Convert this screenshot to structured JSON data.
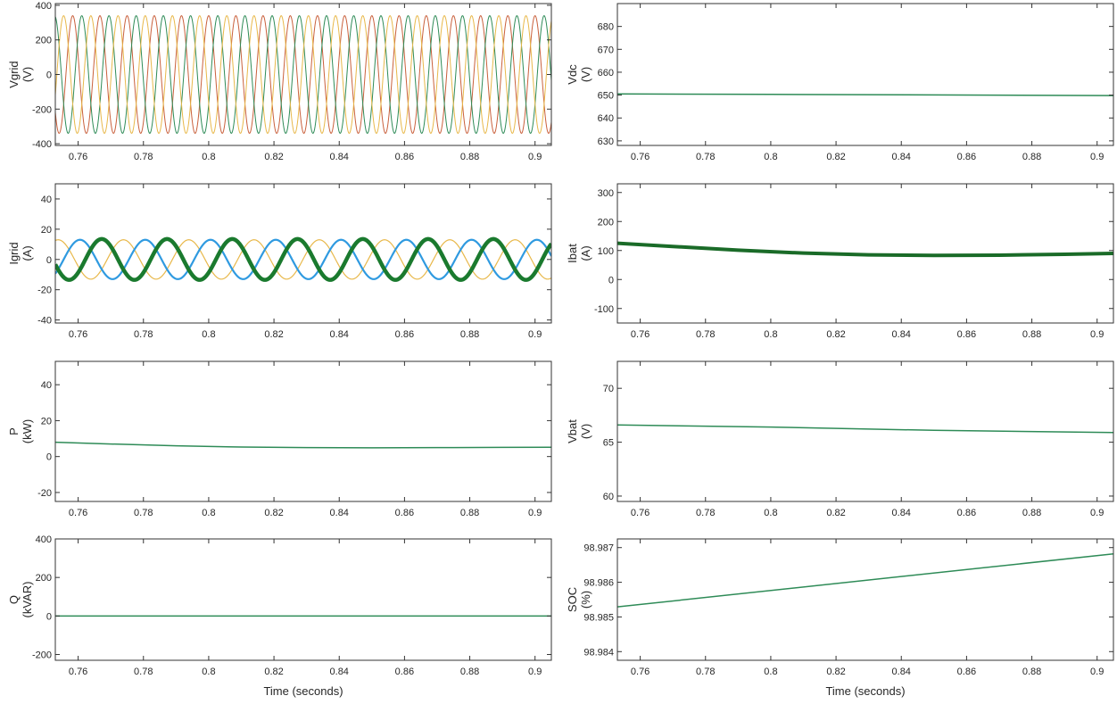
{
  "chart_data": [
    {
      "type": "line",
      "id": "vgrid",
      "ylabel": [
        "Vgrid",
        "(V)"
      ],
      "xlim": [
        0.753,
        0.905
      ],
      "ylim": [
        -410,
        410
      ],
      "yticks": [
        -400,
        -200,
        0,
        200,
        400
      ],
      "ytick_labels": [
        "-400",
        "-200",
        "0",
        "200",
        "400"
      ],
      "xticks": [
        0.76,
        0.78,
        0.8,
        0.82,
        0.84,
        0.86,
        0.88,
        0.9
      ],
      "xtick_labels": [
        "0.76",
        "0.78",
        "0.8",
        "0.82",
        "0.84",
        "0.86",
        "0.88",
        "0.9"
      ],
      "xlabel": "",
      "grid": false,
      "series": [
        {
          "kind": "sine",
          "amplitude": 340,
          "frequency_hz": 120,
          "phase_deg": 90,
          "offset": 0,
          "color": "#c9603c",
          "stroke_width": 1
        },
        {
          "kind": "sine",
          "amplitude": 340,
          "frequency_hz": 120,
          "phase_deg": -30,
          "offset": 0,
          "color": "#2e8b57",
          "stroke_width": 1
        },
        {
          "kind": "sine",
          "amplitude": 340,
          "frequency_hz": 120,
          "phase_deg": 210,
          "offset": 0,
          "color": "#e8b84a",
          "stroke_width": 1
        }
      ]
    },
    {
      "type": "line",
      "id": "vdc",
      "ylabel": [
        "Vdc",
        "(V)"
      ],
      "xlim": [
        0.753,
        0.905
      ],
      "ylim": [
        628,
        690
      ],
      "yticks": [
        630,
        640,
        650,
        660,
        670,
        680
      ],
      "ytick_labels": [
        "630",
        "640",
        "650",
        "660",
        "670",
        "680"
      ],
      "xticks": [
        0.76,
        0.78,
        0.8,
        0.82,
        0.84,
        0.86,
        0.88,
        0.9
      ],
      "xtick_labels": [
        "0.76",
        "0.78",
        "0.8",
        "0.82",
        "0.84",
        "0.86",
        "0.88",
        "0.9"
      ],
      "xlabel": "",
      "grid": false,
      "series": [
        {
          "kind": "points",
          "x": [
            0.753,
            0.8,
            0.85,
            0.905
          ],
          "y": [
            650.5,
            650.3,
            650.1,
            649.8
          ],
          "color": "#2e8b57",
          "stroke_width": 1.5
        }
      ]
    },
    {
      "type": "line",
      "id": "igrid",
      "ylabel": [
        "Igrid",
        "(A)"
      ],
      "xlim": [
        0.753,
        0.905
      ],
      "ylim": [
        -42,
        50
      ],
      "yticks": [
        -40,
        -20,
        0,
        20,
        40
      ],
      "ytick_labels": [
        "-40",
        "-20",
        "0",
        "20",
        "40"
      ],
      "xticks": [
        0.76,
        0.78,
        0.8,
        0.82,
        0.84,
        0.86,
        0.88,
        0.9
      ],
      "xtick_labels": [
        "0.76",
        "0.78",
        "0.8",
        "0.82",
        "0.84",
        "0.86",
        "0.88",
        "0.9"
      ],
      "xlabel": "",
      "grid": false,
      "series": [
        {
          "kind": "sine",
          "amplitude": 13,
          "frequency_hz": 50,
          "phase_deg": 200,
          "offset": 0,
          "color": "#e8b84a",
          "stroke_width": 1.2
        },
        {
          "kind": "sine",
          "amplitude": 13,
          "frequency_hz": 50,
          "phase_deg": 80,
          "offset": 0,
          "color": "#2f9ae0",
          "stroke_width": 2.2
        },
        {
          "kind": "sine",
          "amplitude": 13.5,
          "frequency_hz": 50,
          "phase_deg": -40,
          "offset": 0,
          "color": "#1a7a2e",
          "stroke_width": 4.5
        }
      ]
    },
    {
      "type": "line",
      "id": "ibat",
      "ylabel": [
        "Ibat",
        "(A)"
      ],
      "xlim": [
        0.753,
        0.905
      ],
      "ylim": [
        -150,
        330
      ],
      "yticks": [
        -100,
        0,
        100,
        200,
        300
      ],
      "ytick_labels": [
        "-100",
        "0",
        "100",
        "200",
        "300"
      ],
      "xticks": [
        0.76,
        0.78,
        0.8,
        0.82,
        0.84,
        0.86,
        0.88,
        0.9
      ],
      "xtick_labels": [
        "0.76",
        "0.78",
        "0.8",
        "0.82",
        "0.84",
        "0.86",
        "0.88",
        "0.9"
      ],
      "xlabel": "",
      "grid": false,
      "series": [
        {
          "kind": "points",
          "x": [
            0.753,
            0.77,
            0.79,
            0.81,
            0.83,
            0.85,
            0.87,
            0.89,
            0.905
          ],
          "y": [
            125,
            114,
            101,
            91,
            85,
            83,
            84,
            87,
            90
          ],
          "color": "#1a6b28",
          "stroke_width": 4
        }
      ]
    },
    {
      "type": "line",
      "id": "p",
      "ylabel": [
        "P",
        "(kW)"
      ],
      "xlim": [
        0.753,
        0.905
      ],
      "ylim": [
        -25,
        53
      ],
      "yticks": [
        -20,
        0,
        20,
        40
      ],
      "ytick_labels": [
        "-20",
        "0",
        "20",
        "40"
      ],
      "xticks": [
        0.76,
        0.78,
        0.8,
        0.82,
        0.84,
        0.86,
        0.88,
        0.9
      ],
      "xtick_labels": [
        "0.76",
        "0.78",
        "0.8",
        "0.82",
        "0.84",
        "0.86",
        "0.88",
        "0.9"
      ],
      "xlabel": "",
      "grid": false,
      "series": [
        {
          "kind": "points",
          "x": [
            0.753,
            0.77,
            0.79,
            0.81,
            0.83,
            0.85,
            0.87,
            0.89,
            0.905
          ],
          "y": [
            8,
            7,
            6,
            5.3,
            5,
            4.9,
            5,
            5.1,
            5.2
          ],
          "color": "#2e8b57",
          "stroke_width": 1.5
        }
      ]
    },
    {
      "type": "line",
      "id": "vbat",
      "ylabel": [
        "Vbat",
        "(V)"
      ],
      "xlim": [
        0.753,
        0.905
      ],
      "ylim": [
        59.5,
        72.5
      ],
      "yticks": [
        60,
        65,
        70
      ],
      "ytick_labels": [
        "60",
        "65",
        "70"
      ],
      "xticks": [
        0.76,
        0.78,
        0.8,
        0.82,
        0.84,
        0.86,
        0.88,
        0.9
      ],
      "xtick_labels": [
        "0.76",
        "0.78",
        "0.8",
        "0.82",
        "0.84",
        "0.86",
        "0.88",
        "0.9"
      ],
      "xlabel": "",
      "grid": false,
      "series": [
        {
          "kind": "points",
          "x": [
            0.753,
            0.8,
            0.85,
            0.905
          ],
          "y": [
            66.6,
            66.4,
            66.1,
            65.9
          ],
          "color": "#2e8b57",
          "stroke_width": 1.5
        }
      ]
    },
    {
      "type": "line",
      "id": "q",
      "ylabel": [
        "Q",
        "(kVAR)"
      ],
      "xlim": [
        0.753,
        0.905
      ],
      "ylim": [
        -230,
        400
      ],
      "yticks": [
        -200,
        0,
        200,
        400
      ],
      "ytick_labels": [
        "-200",
        "0",
        "200",
        "400"
      ],
      "xticks": [
        0.76,
        0.78,
        0.8,
        0.82,
        0.84,
        0.86,
        0.88,
        0.9
      ],
      "xtick_labels": [
        "0.76",
        "0.78",
        "0.8",
        "0.82",
        "0.84",
        "0.86",
        "0.88",
        "0.9"
      ],
      "xlabel": "Time (seconds)",
      "grid": false,
      "series": [
        {
          "kind": "points",
          "x": [
            0.753,
            0.905
          ],
          "y": [
            0,
            0
          ],
          "color": "#2e8b57",
          "stroke_width": 1.5
        }
      ]
    },
    {
      "type": "line",
      "id": "soc",
      "ylabel": [
        "SOC",
        "(%)"
      ],
      "xlim": [
        0.753,
        0.905
      ],
      "ylim": [
        98.98375,
        98.98725
      ],
      "yticks": [
        98.984,
        98.985,
        98.986,
        98.987
      ],
      "ytick_labels": [
        "98.984",
        "98.985",
        "98.986",
        "98.987"
      ],
      "xticks": [
        0.76,
        0.78,
        0.8,
        0.82,
        0.84,
        0.86,
        0.88,
        0.9
      ],
      "xtick_labels": [
        "0.76",
        "0.78",
        "0.8",
        "0.82",
        "0.84",
        "0.86",
        "0.88",
        "0.9"
      ],
      "xlabel": "Time (seconds)",
      "grid": false,
      "series": [
        {
          "kind": "points",
          "x": [
            0.753,
            0.905
          ],
          "y": [
            98.98529,
            98.98682
          ],
          "color": "#2e8b57",
          "stroke_width": 1.5
        }
      ]
    }
  ]
}
